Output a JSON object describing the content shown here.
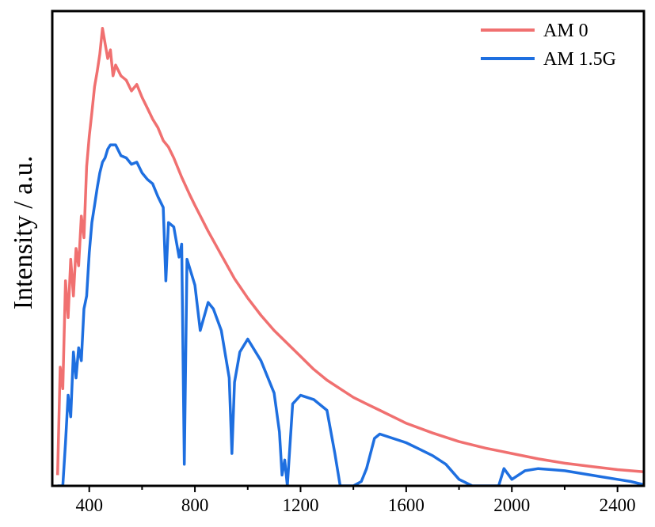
{
  "chart_data": {
    "type": "line",
    "title": "",
    "xlabel": "",
    "ylabel": "Intensity / a.u.",
    "xlim": [
      260,
      2500
    ],
    "ylim": [
      0,
      2.2
    ],
    "xticks": [
      400,
      800,
      1200,
      1600,
      2000,
      2400
    ],
    "xtick_labels": [
      "400",
      "800",
      "1200",
      "1600",
      "2000",
      "2400"
    ],
    "y_tick_labels_shown": false,
    "grid": false,
    "legend_position": "top-right",
    "series": [
      {
        "name": "AM 0",
        "color": "#f07070",
        "x": [
          280,
          290,
          300,
          310,
          320,
          330,
          340,
          350,
          360,
          370,
          380,
          390,
          400,
          410,
          420,
          430,
          440,
          450,
          460,
          470,
          480,
          490,
          500,
          520,
          540,
          560,
          580,
          600,
          620,
          640,
          660,
          680,
          700,
          720,
          750,
          780,
          800,
          850,
          900,
          950,
          1000,
          1050,
          1100,
          1150,
          1200,
          1250,
          1300,
          1350,
          1400,
          1450,
          1500,
          1550,
          1600,
          1700,
          1800,
          1900,
          2000,
          2100,
          2200,
          2300,
          2400,
          2500
        ],
        "y": [
          0.05,
          0.55,
          0.45,
          0.95,
          0.78,
          1.05,
          0.88,
          1.1,
          1.02,
          1.25,
          1.15,
          1.48,
          1.62,
          1.73,
          1.85,
          1.92,
          2.0,
          2.12,
          2.05,
          1.98,
          2.02,
          1.9,
          1.95,
          1.9,
          1.88,
          1.83,
          1.86,
          1.8,
          1.75,
          1.7,
          1.66,
          1.6,
          1.57,
          1.52,
          1.43,
          1.35,
          1.3,
          1.18,
          1.07,
          0.96,
          0.87,
          0.79,
          0.72,
          0.66,
          0.6,
          0.54,
          0.49,
          0.45,
          0.41,
          0.38,
          0.35,
          0.32,
          0.29,
          0.245,
          0.205,
          0.175,
          0.15,
          0.125,
          0.105,
          0.09,
          0.075,
          0.065
        ]
      },
      {
        "name": "AM 1.5G",
        "color": "#1e6fe0",
        "x": [
          280,
          300,
          310,
          320,
          330,
          340,
          350,
          360,
          370,
          380,
          390,
          400,
          410,
          420,
          430,
          440,
          450,
          460,
          470,
          480,
          500,
          520,
          540,
          560,
          580,
          600,
          620,
          640,
          660,
          680,
          690,
          700,
          720,
          740,
          750,
          760,
          770,
          800,
          820,
          850,
          870,
          900,
          930,
          940,
          950,
          970,
          1000,
          1050,
          1100,
          1120,
          1130,
          1140,
          1150,
          1170,
          1200,
          1250,
          1300,
          1330,
          1350,
          1380,
          1400,
          1430,
          1450,
          1480,
          1500,
          1550,
          1600,
          1650,
          1700,
          1750,
          1800,
          1850,
          1900,
          1950,
          1970,
          2000,
          2050,
          2100,
          2150,
          2200,
          2250,
          2300,
          2350,
          2400,
          2450,
          2500
        ],
        "y": [
          0.0,
          0.0,
          0.2,
          0.42,
          0.32,
          0.62,
          0.5,
          0.64,
          0.58,
          0.82,
          0.88,
          1.08,
          1.22,
          1.3,
          1.38,
          1.45,
          1.5,
          1.52,
          1.56,
          1.58,
          1.58,
          1.53,
          1.52,
          1.49,
          1.5,
          1.45,
          1.42,
          1.4,
          1.34,
          1.29,
          0.95,
          1.22,
          1.2,
          1.06,
          1.12,
          0.1,
          1.05,
          0.93,
          0.72,
          0.85,
          0.82,
          0.72,
          0.5,
          0.15,
          0.48,
          0.62,
          0.68,
          0.58,
          0.43,
          0.25,
          0.05,
          0.12,
          0.0,
          0.38,
          0.42,
          0.4,
          0.35,
          0.15,
          0.0,
          0.0,
          0.0,
          0.02,
          0.08,
          0.22,
          0.24,
          0.22,
          0.2,
          0.17,
          0.14,
          0.1,
          0.03,
          0.0,
          0.0,
          0.0,
          0.08,
          0.03,
          0.07,
          0.08,
          0.075,
          0.07,
          0.06,
          0.05,
          0.04,
          0.03,
          0.02,
          0.005
        ]
      }
    ]
  }
}
